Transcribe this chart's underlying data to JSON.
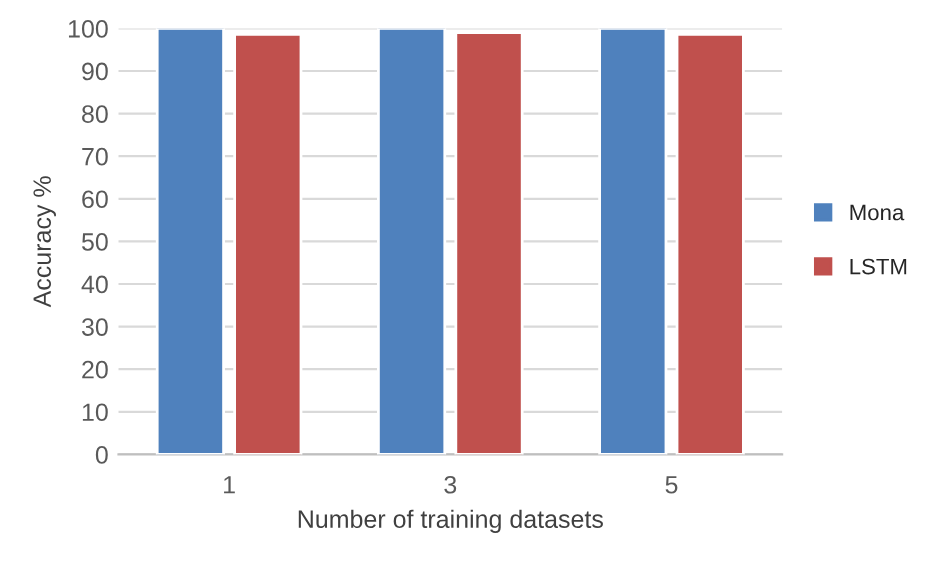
{
  "chart_data": {
    "type": "bar",
    "xlabel": "Number of training datasets",
    "ylabel": "Accuracy %",
    "categories": [
      "1",
      "3",
      "5"
    ],
    "series": [
      {
        "name": "Mona",
        "color": "#4f81bd",
        "values": [
          100,
          100,
          100
        ]
      },
      {
        "name": "LSTM",
        "color": "#c0504d",
        "values": [
          98.6,
          99,
          98.6
        ]
      }
    ],
    "ylim": [
      0,
      100
    ],
    "yticks": [
      0,
      10,
      20,
      30,
      40,
      50,
      60,
      70,
      80,
      90,
      100
    ],
    "grid": "y",
    "legend": "right"
  }
}
